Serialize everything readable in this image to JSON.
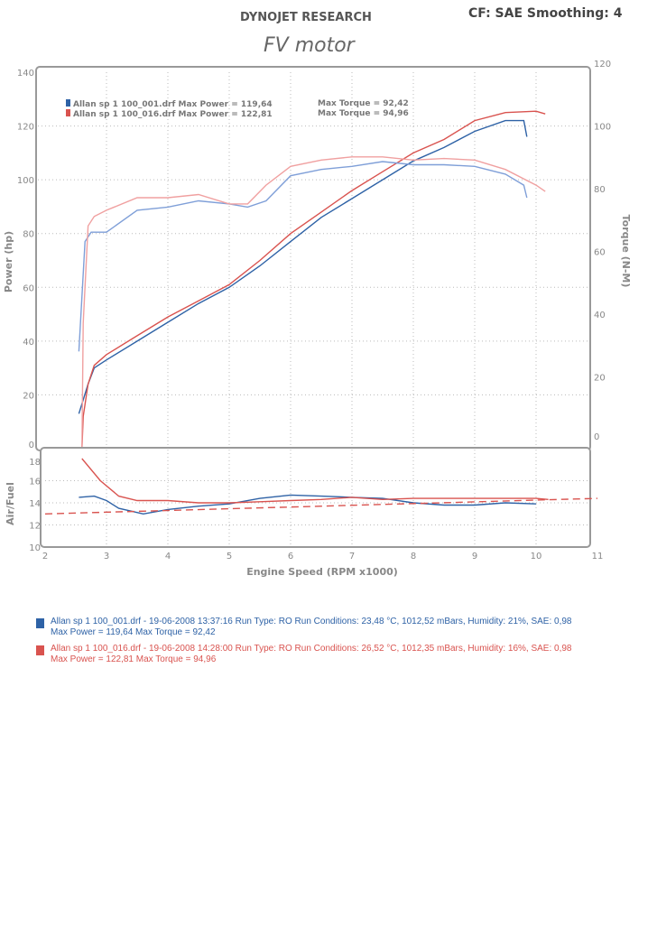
{
  "header": {
    "brand": "DYNOJET RESEARCH",
    "settings": "CF: SAE  Smoothing: 4",
    "title": "FV motor"
  },
  "colors": {
    "blue": "#2e62a6",
    "red": "#d9534f",
    "blue_light": "#7f9fd8",
    "red_light": "#f0a0a0",
    "grid": "#bbbbbb"
  },
  "chart_data": [
    {
      "type": "line",
      "title": "FV motor",
      "xlabel": "Engine Speed (RPM x1000)",
      "ylabel": "Power (hp)",
      "y2label": "Torque (N-M)",
      "xlim": [
        2,
        11
      ],
      "ylim": [
        0,
        140
      ],
      "y2lim": [
        0,
        120
      ],
      "yticks": [
        "0",
        "20",
        "40",
        "60",
        "80",
        "100",
        "120",
        "140"
      ],
      "y2ticks": [
        "0",
        "20",
        "40",
        "60",
        "80",
        "100",
        "120"
      ],
      "grid": true,
      "legend": [
        {
          "file": "Allan sp 1 100_001.drf Max Power = 119,64",
          "torque": "Max Torque = 92,42"
        },
        {
          "file": "Allan sp 1 100_016.drf Max Power = 122,81",
          "torque": "Max Torque = 94,96"
        }
      ],
      "legend_position": "top-left",
      "series": [
        {
          "name": "Power 100_001",
          "axis": "left",
          "color": "blue",
          "x": [
            2.55,
            2.7,
            2.8,
            3,
            3.5,
            4,
            4.5,
            5,
            5.5,
            6,
            6.5,
            7,
            7.5,
            8,
            8.5,
            9,
            9.5,
            9.8,
            9.85
          ],
          "y": [
            13,
            24,
            30,
            33,
            40,
            47,
            54,
            60,
            68,
            77,
            86,
            93,
            100,
            107,
            112,
            118,
            122,
            122,
            116
          ]
        },
        {
          "name": "Power 100_016",
          "axis": "left",
          "color": "red",
          "x": [
            2.6,
            2.62,
            2.7,
            2.8,
            3,
            3.5,
            4,
            4.5,
            5,
            5.5,
            6,
            6.5,
            7,
            7.5,
            8,
            8.5,
            9,
            9.5,
            10,
            10.15
          ],
          "y": [
            0,
            12,
            24,
            31,
            35,
            42,
            49,
            55,
            61,
            70,
            80,
            88,
            96,
            103,
            110,
            115,
            122,
            125,
            125.5,
            124.5
          ]
        },
        {
          "name": "Torque 100_001",
          "axis": "right",
          "color": "blue_light",
          "x": [
            2.55,
            2.65,
            2.75,
            3,
            3.5,
            4,
            4.5,
            5,
            5.3,
            5.6,
            6,
            6.5,
            7,
            7.5,
            8,
            8.5,
            9,
            9.5,
            9.8,
            9.85
          ],
          "y": [
            31,
            66,
            69,
            69,
            76,
            77,
            79,
            78,
            77,
            79,
            87,
            89,
            90,
            91.5,
            90.5,
            90.5,
            90,
            87.5,
            84,
            80
          ]
        },
        {
          "name": "Torque 100_016",
          "axis": "right",
          "color": "red_light",
          "x": [
            2.6,
            2.62,
            2.7,
            2.8,
            3,
            3.5,
            4,
            4.5,
            5,
            5.3,
            5.6,
            6,
            6.5,
            7,
            7.5,
            8,
            8.5,
            9,
            9.5,
            10,
            10.15
          ],
          "y": [
            0,
            40,
            71,
            74,
            76,
            80,
            80,
            81,
            78,
            78,
            84,
            90,
            92,
            93,
            93,
            92,
            92.5,
            92,
            89,
            84,
            82
          ]
        }
      ]
    },
    {
      "type": "line",
      "ylabel": "Air/Fuel",
      "xlabel": "Engine Speed (RPM x1000)",
      "xlim": [
        2,
        11
      ],
      "ylim": [
        10,
        18
      ],
      "yticks": [
        "10",
        "12",
        "14",
        "16",
        "18"
      ],
      "xticks": [
        "2",
        "3",
        "4",
        "5",
        "6",
        "7",
        "8",
        "9",
        "10",
        "11"
      ],
      "series": [
        {
          "name": "AFR 100_001",
          "color": "blue",
          "x": [
            2.55,
            2.8,
            3,
            3.2,
            3.6,
            4,
            4.5,
            5,
            5.5,
            6,
            6.5,
            7,
            7.5,
            8,
            8.5,
            9,
            9.5,
            10
          ],
          "y": [
            14.5,
            14.6,
            14.2,
            13.5,
            13.0,
            13.4,
            13.7,
            13.9,
            14.4,
            14.7,
            14.6,
            14.5,
            14.4,
            14.0,
            13.8,
            13.8,
            14.0,
            13.9
          ]
        },
        {
          "name": "AFR 100_016",
          "color": "red",
          "x": [
            2.6,
            2.9,
            3.2,
            3.5,
            4,
            4.5,
            5,
            5.5,
            6,
            6.5,
            7,
            7.5,
            8,
            8.5,
            9,
            9.5,
            10,
            10.2
          ],
          "y": [
            18,
            16,
            14.6,
            14.2,
            14.2,
            14.0,
            14.0,
            14.1,
            14.2,
            14.3,
            14.5,
            14.3,
            14.4,
            14.4,
            14.4,
            14.4,
            14.4,
            14.3
          ]
        },
        {
          "name": "AFR target",
          "color": "red",
          "dashed": true,
          "x": [
            2,
            11
          ],
          "y": [
            13.0,
            14.4
          ]
        }
      ]
    }
  ],
  "runs": [
    {
      "line1": "Allan sp 1 100_001.drf - 19-06-2008 13:37:16  Run Type: RO  Run Conditions: 23,48 °C, 1012,52 mBars,  Humidity:  21%, SAE: 0,98",
      "line2": "Max Power = 119,64  Max Torque = 92,42",
      "color": "blue"
    },
    {
      "line1": "Allan sp 1 100_016.drf - 19-06-2008 14:28:00  Run Type: RO  Run Conditions: 26,52 °C, 1012,35 mBars,  Humidity:  16%, SAE: 0,98",
      "line2": "Max Power = 122,81  Max Torque = 94,96",
      "color": "red"
    }
  ]
}
